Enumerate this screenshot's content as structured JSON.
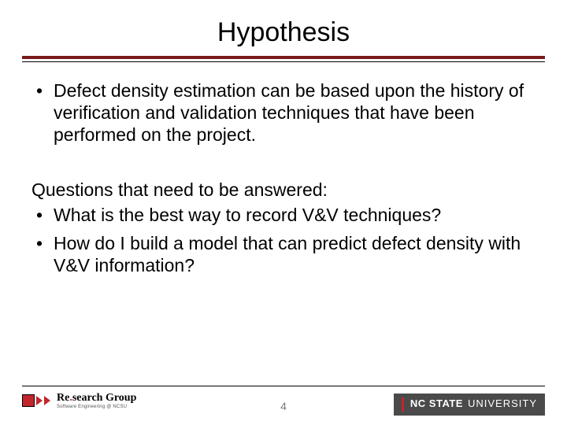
{
  "title": "Hypothesis",
  "bullets_main": [
    "Defect density estimation can be based upon the history of verification and validation techniques that have been performed on the project."
  ],
  "questions_intro": "Questions that need to be answered:",
  "bullets_questions": [
    "What is the best way to record V&V techniques?",
    "How do I build a model that can predict defect density with V&V information?"
  ],
  "page_number": "4",
  "logo_left": {
    "text_prefix": "Re",
    "text_suffix": "search Group",
    "subtitle": "Software Engineering @ NCSU"
  },
  "logo_right": {
    "bold": "NC STATE",
    "light": "UNIVERSITY"
  },
  "colors": {
    "rule": "#7a1a1a",
    "accent": "#c1272d",
    "footer_text": "#7a7a7a",
    "ncsu_bg": "#4a4a4a"
  }
}
